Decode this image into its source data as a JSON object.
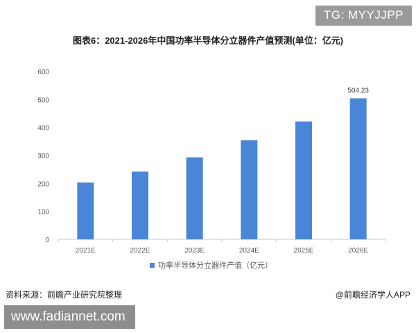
{
  "overlay": {
    "tg_tag": "TG: MYYJJPP",
    "website": "www.fadiannet.com"
  },
  "footer": {
    "source": "资料来源：前瞻产业研究院整理",
    "brand": "@前瞻经济学人APP"
  },
  "colors": {
    "bar": "#4a86d8",
    "axis": "#c8c8c8",
    "text": "#595959"
  },
  "chart_data": {
    "type": "bar",
    "title": "图表6：2021-2026年中国功率半导体分立器件产值预测(单位：亿元)",
    "categories": [
      "2021E",
      "2022E",
      "2023E",
      "2024E",
      "2025E",
      "2026E"
    ],
    "series": [
      {
        "name": "功率半导体分立器件产值（亿元）",
        "values": [
          203,
          242,
          293,
          354,
          421,
          504.23
        ]
      }
    ],
    "data_labels": [
      "",
      "",
      "",
      "",
      "",
      "504.23"
    ],
    "y_ticks": [
      "0",
      "100",
      "200",
      "300",
      "400",
      "500",
      "600"
    ],
    "ylim": [
      0,
      600
    ],
    "grid": false,
    "legend_position": "bottom"
  }
}
